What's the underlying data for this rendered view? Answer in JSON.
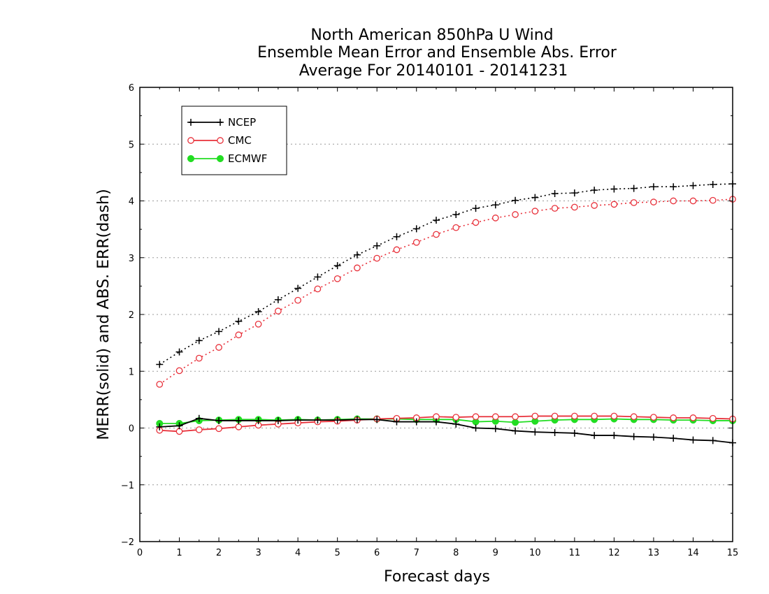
{
  "chart_data": {
    "type": "line",
    "title_lines": [
      "North American 850hPa U Wind",
      "Ensemble Mean Error and Ensemble Abs. Error",
      "Average For 20140101 - 20141231"
    ],
    "xlabel": "Forecast days",
    "ylabel": "MERR(solid) and ABS. ERR(dash)",
    "xlim": [
      0,
      15
    ],
    "ylim": [
      -2,
      6
    ],
    "xticks": [
      0,
      1,
      2,
      3,
      4,
      5,
      6,
      7,
      8,
      9,
      10,
      11,
      12,
      13,
      14,
      15
    ],
    "yticks": [
      -2,
      -1,
      0,
      1,
      2,
      3,
      4,
      5,
      6
    ],
    "ytick_labels": [
      "−2",
      "−1",
      "0",
      "1",
      "2",
      "3",
      "4",
      "5",
      "6"
    ],
    "grid": "horizontal dotted",
    "legend_position": "top-left",
    "x": [
      0.5,
      1,
      1.5,
      2,
      2.5,
      3,
      3.5,
      4,
      4.5,
      5,
      5.5,
      6,
      6.5,
      7,
      7.5,
      8,
      8.5,
      9,
      9.5,
      10,
      10.5,
      11,
      11.5,
      12,
      12.5,
      13,
      13.5,
      14,
      14.5,
      15
    ],
    "series": [
      {
        "name": "NCEP",
        "color": "#000000",
        "marker": "plus",
        "merr": [
          0.02,
          0.04,
          0.17,
          0.13,
          0.13,
          0.13,
          0.13,
          0.14,
          0.14,
          0.14,
          0.15,
          0.15,
          0.11,
          0.11,
          0.11,
          0.07,
          0.0,
          -0.01,
          -0.05,
          -0.07,
          -0.08,
          -0.09,
          -0.13,
          -0.13,
          -0.15,
          -0.16,
          -0.18,
          -0.21,
          -0.22,
          -0.26
        ],
        "abs_err": [
          1.12,
          1.34,
          1.54,
          1.7,
          1.88,
          2.05,
          2.26,
          2.46,
          2.66,
          2.86,
          3.05,
          3.21,
          3.37,
          3.51,
          3.66,
          3.76,
          3.87,
          3.93,
          4.01,
          4.06,
          4.13,
          4.14,
          4.19,
          4.21,
          4.22,
          4.25,
          4.25,
          4.27,
          4.29,
          4.3
        ]
      },
      {
        "name": "CMC",
        "color": "#e8303a",
        "marker": "open-circle",
        "merr": [
          -0.04,
          -0.06,
          -0.03,
          -0.01,
          0.02,
          0.05,
          0.07,
          0.09,
          0.11,
          0.12,
          0.14,
          0.16,
          0.17,
          0.18,
          0.2,
          0.19,
          0.2,
          0.2,
          0.2,
          0.21,
          0.21,
          0.21,
          0.21,
          0.21,
          0.2,
          0.19,
          0.18,
          0.18,
          0.17,
          0.16
        ],
        "abs_err": [
          0.77,
          1.01,
          1.23,
          1.42,
          1.64,
          1.83,
          2.06,
          2.25,
          2.45,
          2.63,
          2.82,
          2.99,
          3.14,
          3.27,
          3.41,
          3.53,
          3.62,
          3.7,
          3.76,
          3.82,
          3.87,
          3.89,
          3.92,
          3.94,
          3.97,
          3.98,
          4.0,
          4.0,
          4.01,
          4.03
        ]
      },
      {
        "name": "ECMWF",
        "color": "#22dd22",
        "marker": "filled-circle",
        "merr": [
          0.08,
          0.08,
          0.13,
          0.14,
          0.15,
          0.15,
          0.14,
          0.15,
          0.14,
          0.15,
          0.16,
          0.16,
          0.16,
          0.15,
          0.15,
          0.15,
          0.11,
          0.12,
          0.1,
          0.12,
          0.14,
          0.15,
          0.15,
          0.16,
          0.15,
          0.15,
          0.14,
          0.14,
          0.13,
          0.13
        ]
      }
    ]
  }
}
